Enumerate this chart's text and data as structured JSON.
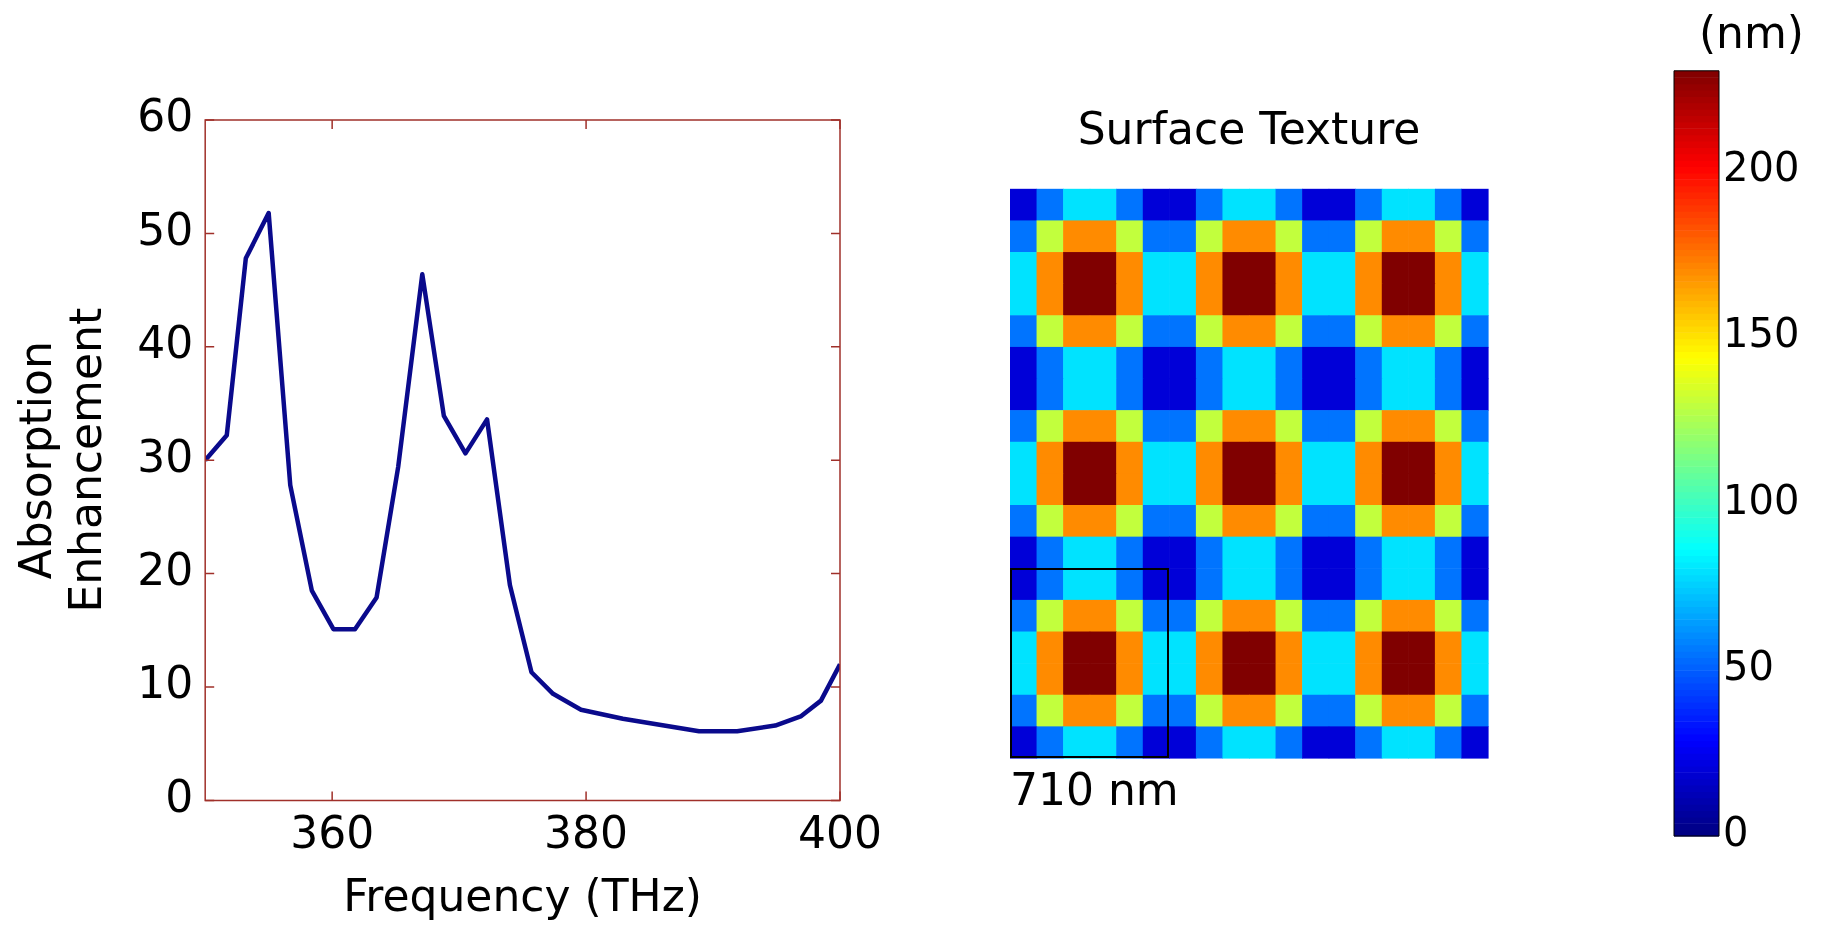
{
  "chart_data": [
    {
      "type": "line",
      "xlabel": "Frequency (THz)",
      "ylabel": "Absorption Enhancement",
      "xlim": [
        350,
        400
      ],
      "xticks": [
        360,
        380,
        400
      ],
      "ylim": [
        0,
        60
      ],
      "yticks": [
        0,
        10,
        20,
        30,
        40,
        50,
        60
      ],
      "x": [
        350,
        351.7,
        353.2,
        355.0,
        356.7,
        358.4,
        360.1,
        361.8,
        363.5,
        365.2,
        367.1,
        368.8,
        370.5,
        372.2,
        374.0,
        375.7,
        377.4,
        379.6,
        382.9,
        388.9,
        391.9,
        394.9,
        396.9,
        398.5,
        400
      ],
      "series": [
        {
          "color": "#0a0a8c",
          "values": [
            30.0,
            32.2,
            47.8,
            51.8,
            27.8,
            18.5,
            15.1,
            15.1,
            17.9,
            29.4,
            46.4,
            33.9,
            30.6,
            33.6,
            19.0,
            11.3,
            9.4,
            8.0,
            7.2,
            6.1,
            6.1,
            6.6,
            7.4,
            8.8,
            12.0
          ]
        }
      ]
    },
    {
      "type": "heatmap",
      "title": "Surface Texture",
      "clabel": "(nm)",
      "clim": [
        0,
        230
      ],
      "cticks": [
        0,
        50,
        100,
        150,
        200
      ],
      "tick_labels": false,
      "annotations": [
        "710 nm"
      ],
      "categories": [
        null,
        null,
        null,
        null,
        null,
        null,
        null,
        null,
        null,
        null,
        null,
        null,
        null,
        null,
        null,
        null,
        null,
        null
      ],
      "y_categories": [
        null,
        null,
        null,
        null,
        null,
        null,
        null,
        null,
        null,
        null,
        null,
        null,
        null,
        null,
        null,
        null,
        null,
        null
      ],
      "cells": [
        [
          20,
          55,
          80,
          80,
          55,
          20,
          20,
          55,
          80,
          80,
          55,
          20,
          20,
          55,
          80,
          80,
          55,
          20
        ],
        [
          55,
          130,
          170,
          170,
          130,
          55,
          55,
          130,
          170,
          170,
          130,
          55,
          55,
          130,
          170,
          170,
          130,
          55
        ],
        [
          80,
          170,
          230,
          230,
          170,
          80,
          80,
          170,
          230,
          230,
          170,
          80,
          80,
          170,
          230,
          230,
          170,
          80
        ],
        [
          80,
          170,
          230,
          230,
          170,
          80,
          80,
          170,
          230,
          230,
          170,
          80,
          80,
          170,
          230,
          230,
          170,
          80
        ],
        [
          55,
          130,
          170,
          170,
          130,
          55,
          55,
          130,
          170,
          170,
          130,
          55,
          55,
          130,
          170,
          170,
          130,
          55
        ],
        [
          20,
          55,
          80,
          80,
          55,
          20,
          20,
          55,
          80,
          80,
          55,
          20,
          20,
          55,
          80,
          80,
          55,
          20
        ],
        [
          20,
          55,
          80,
          80,
          55,
          20,
          20,
          55,
          80,
          80,
          55,
          20,
          20,
          55,
          80,
          80,
          55,
          20
        ],
        [
          55,
          130,
          170,
          170,
          130,
          55,
          55,
          130,
          170,
          170,
          130,
          55,
          55,
          130,
          170,
          170,
          130,
          55
        ],
        [
          80,
          170,
          230,
          230,
          170,
          80,
          80,
          170,
          230,
          230,
          170,
          80,
          80,
          170,
          230,
          230,
          170,
          80
        ],
        [
          80,
          170,
          230,
          230,
          170,
          80,
          80,
          170,
          230,
          230,
          170,
          80,
          80,
          170,
          230,
          230,
          170,
          80
        ],
        [
          55,
          130,
          170,
          170,
          130,
          55,
          55,
          130,
          170,
          170,
          130,
          55,
          55,
          130,
          170,
          170,
          130,
          55
        ],
        [
          20,
          55,
          80,
          80,
          55,
          20,
          20,
          55,
          80,
          80,
          55,
          20,
          20,
          55,
          80,
          80,
          55,
          20
        ],
        [
          20,
          55,
          80,
          80,
          55,
          20,
          20,
          55,
          80,
          80,
          55,
          20,
          20,
          55,
          80,
          80,
          55,
          20
        ],
        [
          55,
          130,
          170,
          170,
          130,
          55,
          55,
          130,
          170,
          170,
          130,
          55,
          55,
          130,
          170,
          170,
          130,
          55
        ],
        [
          80,
          170,
          230,
          230,
          170,
          80,
          80,
          170,
          230,
          230,
          170,
          80,
          80,
          170,
          230,
          230,
          170,
          80
        ],
        [
          80,
          170,
          230,
          230,
          170,
          80,
          80,
          170,
          230,
          230,
          170,
          80,
          80,
          170,
          230,
          230,
          170,
          80
        ],
        [
          55,
          130,
          170,
          170,
          130,
          55,
          55,
          130,
          170,
          170,
          130,
          55,
          55,
          130,
          170,
          170,
          130,
          55
        ],
        [
          20,
          55,
          80,
          80,
          55,
          20,
          20,
          55,
          80,
          80,
          55,
          20,
          20,
          55,
          80,
          80,
          55,
          20
        ]
      ]
    }
  ]
}
